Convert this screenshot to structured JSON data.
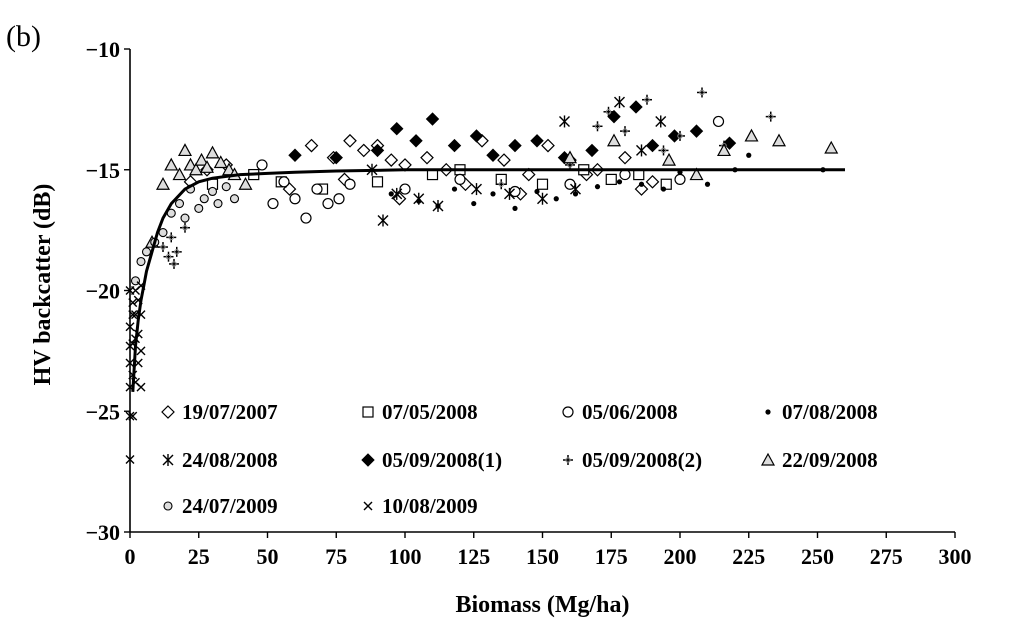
{
  "panel_label": "(b)",
  "chart_data": {
    "type": "scatter",
    "title": "",
    "xlabel": "Biomass (Mg/ha)",
    "ylabel": "HV backcatter (dB)",
    "xlim": [
      0,
      300
    ],
    "ylim": [
      -30,
      -10
    ],
    "xticks": [
      0,
      25,
      50,
      75,
      100,
      125,
      150,
      175,
      200,
      225,
      250,
      275,
      300
    ],
    "yticks": [
      -30,
      -25,
      -20,
      -15,
      -10
    ],
    "ytick_labels": [
      "−30",
      "−25",
      "−20",
      "−15",
      "−10"
    ],
    "grid": false,
    "legend_position": "bottom-left inside",
    "fit_curve": {
      "name": "",
      "x": [
        1,
        2,
        3,
        4,
        5,
        6,
        8,
        10,
        12,
        15,
        20,
        25,
        30,
        40,
        50,
        60,
        75,
        100,
        125,
        150,
        175,
        200,
        225,
        250,
        260
      ],
      "y": [
        -24.2,
        -22.3,
        -21.2,
        -20.4,
        -19.8,
        -19.2,
        -18.4,
        -17.6,
        -17.0,
        -16.4,
        -15.8,
        -15.5,
        -15.35,
        -15.2,
        -15.15,
        -15.1,
        -15.05,
        -15.0,
        -15.0,
        -15.0,
        -15.0,
        -15.0,
        -15.0,
        -15.0,
        -15.0
      ]
    },
    "series": [
      {
        "name": "19/07/2007",
        "marker": "diamond-open",
        "x": [
          22,
          28,
          35,
          66,
          74,
          80,
          85,
          90,
          95,
          100,
          108,
          115,
          128,
          136,
          145,
          152,
          160,
          170,
          180,
          190,
          58,
          78,
          98,
          122,
          142,
          166,
          186
        ],
        "y": [
          -15.5,
          -15.0,
          -14.8,
          -14.0,
          -14.5,
          -13.8,
          -14.2,
          -14.0,
          -14.6,
          -14.8,
          -14.5,
          -15.0,
          -13.8,
          -14.6,
          -15.2,
          -14.0,
          -14.6,
          -15.0,
          -14.5,
          -15.5,
          -15.8,
          -15.4,
          -16.2,
          -15.6,
          -16.0,
          -15.2,
          -15.8
        ]
      },
      {
        "name": "07/05/2008",
        "marker": "square-open",
        "x": [
          30,
          45,
          55,
          70,
          90,
          110,
          120,
          135,
          150,
          165,
          175,
          185,
          195
        ],
        "y": [
          -15.6,
          -15.2,
          -15.5,
          -15.8,
          -15.5,
          -15.2,
          -15.0,
          -15.4,
          -15.6,
          -15.0,
          -15.4,
          -15.2,
          -15.6
        ]
      },
      {
        "name": "05/06/2008",
        "marker": "circle-open",
        "x": [
          48,
          52,
          56,
          60,
          64,
          68,
          72,
          76,
          80,
          100,
          120,
          140,
          160,
          180,
          200,
          214
        ],
        "y": [
          -14.8,
          -16.4,
          -15.5,
          -16.2,
          -17.0,
          -15.8,
          -16.4,
          -16.2,
          -15.6,
          -15.8,
          -15.4,
          -15.9,
          -15.6,
          -15.2,
          -15.4,
          -13.0
        ]
      },
      {
        "name": "07/08/2008",
        "marker": "dot",
        "x": [
          95,
          105,
          112,
          118,
          125,
          132,
          140,
          148,
          155,
          162,
          170,
          178,
          186,
          194,
          200,
          210,
          220,
          225,
          252
        ],
        "y": [
          -16.0,
          -16.3,
          -16.5,
          -15.8,
          -16.4,
          -16.0,
          -16.6,
          -15.9,
          -16.2,
          -16.0,
          -15.7,
          -15.5,
          -15.6,
          -15.8,
          -15.1,
          -15.6,
          -15.0,
          -14.4,
          -15.0
        ]
      },
      {
        "name": "24/08/2008",
        "marker": "star",
        "x": [
          88,
          92,
          97,
          105,
          112,
          126,
          138,
          150,
          158,
          162,
          178,
          186,
          193
        ],
        "y": [
          -15.0,
          -17.1,
          -16.0,
          -16.2,
          -16.5,
          -15.8,
          -16.0,
          -16.2,
          -13.0,
          -15.8,
          -12.2,
          -14.2,
          -13.0
        ]
      },
      {
        "name": "05/09/2008(1)",
        "marker": "diamond-filled",
        "x": [
          60,
          75,
          90,
          97,
          104,
          110,
          118,
          126,
          132,
          140,
          148,
          158,
          168,
          176,
          184,
          190,
          198,
          206,
          218
        ],
        "y": [
          -14.4,
          -14.5,
          -14.2,
          -13.3,
          -13.8,
          -12.9,
          -14.0,
          -13.6,
          -14.4,
          -14.0,
          -13.8,
          -14.5,
          -14.2,
          -12.8,
          -12.4,
          -14.0,
          -13.6,
          -13.4,
          -13.9
        ]
      },
      {
        "name": "05/09/2008(2)",
        "marker": "plus",
        "x": [
          12,
          14,
          15,
          16,
          17,
          20,
          135,
          160,
          170,
          174,
          180,
          188,
          194,
          200,
          208,
          216,
          233
        ],
        "y": [
          -18.2,
          -18.6,
          -17.8,
          -18.9,
          -18.4,
          -17.4,
          -15.6,
          -14.8,
          -13.2,
          -12.6,
          -13.4,
          -12.1,
          -14.2,
          -13.6,
          -11.8,
          -14.0,
          -12.8
        ]
      },
      {
        "name": "22/09/2008",
        "marker": "triangle-open",
        "x": [
          8,
          12,
          15,
          18,
          20,
          22,
          24,
          26,
          28,
          30,
          33,
          36,
          38,
          42,
          160,
          176,
          196,
          206,
          216,
          226,
          236,
          255
        ],
        "y": [
          -18.0,
          -15.6,
          -14.8,
          -15.2,
          -14.2,
          -14.8,
          -15.0,
          -14.6,
          -14.9,
          -14.3,
          -14.7,
          -15.0,
          -15.2,
          -15.6,
          -14.5,
          -13.8,
          -14.6,
          -15.2,
          -14.2,
          -13.6,
          -13.8,
          -14.1
        ]
      },
      {
        "name": "24/07/2009",
        "marker": "circle-open-small",
        "x": [
          2,
          4,
          6,
          9,
          12,
          15,
          18,
          20,
          22,
          25,
          27,
          30,
          32,
          35,
          38
        ],
        "y": [
          -19.6,
          -18.8,
          -18.4,
          -18.0,
          -17.6,
          -16.8,
          -16.4,
          -17.0,
          -15.8,
          -16.6,
          -16.2,
          -15.9,
          -16.4,
          -15.7,
          -16.2
        ]
      },
      {
        "name": "10/08/2009",
        "marker": "x",
        "x": [
          0,
          0,
          0,
          0,
          0,
          0,
          0,
          1,
          1,
          1,
          1,
          1,
          2,
          2,
          2,
          2,
          3,
          3,
          3,
          4,
          4,
          4,
          4
        ],
        "y": [
          -20.0,
          -21.5,
          -22.3,
          -23.0,
          -24.0,
          -25.2,
          -27.0,
          -20.5,
          -21.0,
          -22.2,
          -23.5,
          -25.2,
          -20.0,
          -21.0,
          -22.0,
          -23.8,
          -20.4,
          -21.8,
          -23.0,
          -19.8,
          -21.0,
          -22.5,
          -24.0
        ]
      }
    ]
  }
}
